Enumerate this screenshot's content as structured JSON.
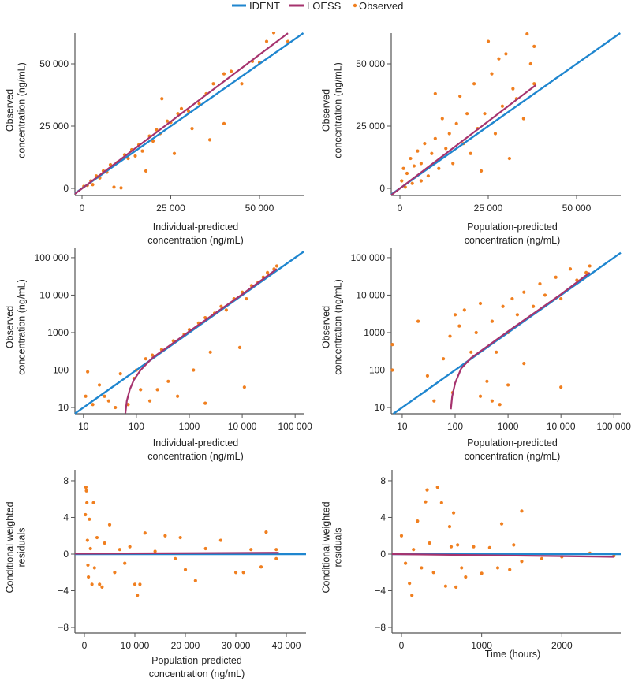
{
  "legend": {
    "items": [
      {
        "label": "IDENT",
        "kind": "line",
        "color": "#1f86cf"
      },
      {
        "label": "LOESS",
        "kind": "line",
        "color": "#a6336e"
      },
      {
        "label": "Observed",
        "kind": "point",
        "color": "#f07f1f"
      }
    ],
    "placement": "top-center"
  },
  "chart_data": [
    {
      "type": "scatter",
      "xlabel": [
        "Individual-predicted",
        "concentration (ng/mL)"
      ],
      "ylabel": [
        "Observed",
        "concentration (ng/mL)"
      ],
      "xscale": "linear",
      "yscale": "linear",
      "xlim": [
        -2000,
        62440
      ],
      "ylim": [
        -2850,
        62340
      ],
      "xticks": [
        0,
        25000,
        50000
      ],
      "xtick_labels": [
        "0",
        "25 000",
        "50 000"
      ],
      "yticks": [
        0,
        25000,
        50000
      ],
      "ytick_labels": [
        "0",
        "25 000",
        "50 000"
      ],
      "ident": "y=x",
      "loess": [
        [
          -2000,
          -2200
        ],
        [
          58000,
          62300
        ]
      ],
      "observed": [
        [
          500,
          800
        ],
        [
          1500,
          1200
        ],
        [
          2500,
          3000
        ],
        [
          3000,
          1500
        ],
        [
          4000,
          5000
        ],
        [
          5000,
          4200
        ],
        [
          6000,
          7000
        ],
        [
          7000,
          6500
        ],
        [
          8000,
          9500
        ],
        [
          9000,
          500
        ],
        [
          10000,
          10500
        ],
        [
          11000,
          200
        ],
        [
          12000,
          13500
        ],
        [
          13000,
          12000
        ],
        [
          14000,
          15500
        ],
        [
          15000,
          13000
        ],
        [
          16000,
          17500
        ],
        [
          17000,
          15000
        ],
        [
          18000,
          7000
        ],
        [
          19000,
          21000
        ],
        [
          20000,
          19000
        ],
        [
          21000,
          23500
        ],
        [
          22000,
          22000
        ],
        [
          22500,
          36000
        ],
        [
          24000,
          27000
        ],
        [
          25000,
          26500
        ],
        [
          26000,
          14000
        ],
        [
          27000,
          30000
        ],
        [
          28000,
          32000
        ],
        [
          30000,
          31000
        ],
        [
          31000,
          24000
        ],
        [
          33000,
          34000
        ],
        [
          35000,
          38000
        ],
        [
          36000,
          19500
        ],
        [
          37000,
          42000
        ],
        [
          40000,
          26000
        ],
        [
          40000,
          46000
        ],
        [
          42000,
          47000
        ],
        [
          45000,
          42000
        ],
        [
          48000,
          51000
        ],
        [
          50000,
          50500
        ],
        [
          52000,
          59000
        ],
        [
          54000,
          62500
        ],
        [
          58000,
          59000
        ]
      ]
    },
    {
      "type": "scatter",
      "xlabel": [
        "Population-predicted",
        "concentration (ng/mL)"
      ],
      "ylabel": [
        "Observed",
        "concentration (ng/mL)"
      ],
      "xscale": "linear",
      "yscale": "linear",
      "xlim": [
        -2460,
        62500
      ],
      "ylim": [
        -2850,
        62340
      ],
      "xticks": [
        0,
        25000,
        50000
      ],
      "xtick_labels": [
        "0",
        "25 000",
        "50 000"
      ],
      "yticks": [
        0,
        25000,
        50000
      ],
      "ytick_labels": [
        "0",
        "25 000",
        "50 000"
      ],
      "ident": "y=x",
      "loess": [
        [
          -2460,
          -2700
        ],
        [
          38500,
          41500
        ]
      ],
      "observed": [
        [
          500,
          3000
        ],
        [
          1000,
          8000
        ],
        [
          1500,
          500
        ],
        [
          2000,
          6000
        ],
        [
          3000,
          12000
        ],
        [
          3500,
          2000
        ],
        [
          4000,
          9000
        ],
        [
          5000,
          15000
        ],
        [
          6000,
          3000
        ],
        [
          6000,
          10000
        ],
        [
          7000,
          18000
        ],
        [
          8000,
          5000
        ],
        [
          9000,
          14000
        ],
        [
          10000,
          38000
        ],
        [
          10000,
          20000
        ],
        [
          11000,
          8000
        ],
        [
          12000,
          28000
        ],
        [
          13000,
          16000
        ],
        [
          14000,
          22000
        ],
        [
          15000,
          10000
        ],
        [
          16000,
          26000
        ],
        [
          17000,
          37000
        ],
        [
          18000,
          18000
        ],
        [
          19000,
          30000
        ],
        [
          20000,
          14000
        ],
        [
          21000,
          42000
        ],
        [
          22000,
          24000
        ],
        [
          23000,
          7000
        ],
        [
          24000,
          30000
        ],
        [
          25000,
          59000
        ],
        [
          26000,
          46000
        ],
        [
          27000,
          22000
        ],
        [
          28000,
          52000
        ],
        [
          29000,
          33000
        ],
        [
          30000,
          54000
        ],
        [
          31000,
          12000
        ],
        [
          32000,
          40000
        ],
        [
          33000,
          36000
        ],
        [
          35000,
          28000
        ],
        [
          36000,
          62000
        ],
        [
          37000,
          50000
        ],
        [
          38000,
          57000
        ],
        [
          38000,
          42000
        ]
      ]
    },
    {
      "type": "scatter",
      "xlabel": [
        "Individual-predicted",
        "concentration (ng/mL)"
      ],
      "ylabel": [
        "Observed",
        "concentration (ng/mL)"
      ],
      "xscale": "log",
      "yscale": "log",
      "xlim": [
        6.9,
        145000
      ],
      "ylim": [
        6.8,
        178000
      ],
      "xticks": [
        10,
        100,
        1000,
        10000,
        100000
      ],
      "xtick_labels": [
        "10",
        "100",
        "1000",
        "10 000",
        "100 000"
      ],
      "yticks": [
        10,
        100,
        1000,
        10000,
        100000
      ],
      "ytick_labels": [
        "10",
        "100",
        "1000",
        "10 000",
        "100 000"
      ],
      "ident": "y=x",
      "loess": [
        [
          62,
          7
        ],
        [
          66,
          15
        ],
        [
          75,
          30
        ],
        [
          90,
          55
        ],
        [
          120,
          100
        ],
        [
          200,
          210
        ],
        [
          500,
          530
        ],
        [
          1000,
          1080
        ],
        [
          3000,
          3200
        ],
        [
          10000,
          10500
        ],
        [
          45000,
          50000
        ]
      ],
      "observed": [
        [
          12,
          90
        ],
        [
          11,
          20
        ],
        [
          15,
          12
        ],
        [
          20,
          40
        ],
        [
          25,
          20
        ],
        [
          30,
          15
        ],
        [
          40,
          10
        ],
        [
          50,
          80
        ],
        [
          70,
          12
        ],
        [
          90,
          60
        ],
        [
          100,
          100
        ],
        [
          120,
          30
        ],
        [
          150,
          200
        ],
        [
          180,
          15
        ],
        [
          200,
          250
        ],
        [
          250,
          30
        ],
        [
          300,
          350
        ],
        [
          400,
          50
        ],
        [
          500,
          600
        ],
        [
          600,
          20
        ],
        [
          800,
          900
        ],
        [
          1000,
          1200
        ],
        [
          1200,
          100
        ],
        [
          1500,
          1800
        ],
        [
          2000,
          2500
        ],
        [
          2000,
          13
        ],
        [
          2500,
          300
        ],
        [
          3000,
          3300
        ],
        [
          4000,
          5000
        ],
        [
          5000,
          4000
        ],
        [
          7000,
          8000
        ],
        [
          9000,
          400
        ],
        [
          10000,
          12000
        ],
        [
          11000,
          35
        ],
        [
          12000,
          8000
        ],
        [
          15000,
          18000
        ],
        [
          20000,
          22000
        ],
        [
          25000,
          30000
        ],
        [
          30000,
          40000
        ],
        [
          40000,
          50000
        ],
        [
          45000,
          60000
        ]
      ]
    },
    {
      "type": "scatter",
      "xlabel": [
        "Population-predicted",
        "concentration (ng/mL)"
      ],
      "ylabel": [
        "Observed",
        "concentration (ng/mL)"
      ],
      "xscale": "log",
      "yscale": "log",
      "xlim": [
        6.2,
        135000
      ],
      "ylim": [
        6.8,
        178000
      ],
      "xticks": [
        10,
        100,
        1000,
        10000,
        100000
      ],
      "xtick_labels": [
        "10",
        "100",
        "1000",
        "10 000",
        "100 000"
      ],
      "yticks": [
        10,
        100,
        1000,
        10000,
        100000
      ],
      "ytick_labels": [
        "10",
        "100",
        "1000",
        "10 000",
        "100 000"
      ],
      "ident": "y=x",
      "loess": [
        [
          83,
          9
        ],
        [
          88,
          20
        ],
        [
          100,
          45
        ],
        [
          130,
          110
        ],
        [
          200,
          210
        ],
        [
          500,
          530
        ],
        [
          1000,
          1080
        ],
        [
          10000,
          10500
        ],
        [
          35000,
          40000
        ]
      ],
      "observed": [
        [
          6.5,
          480
        ],
        [
          6.5,
          100
        ],
        [
          20,
          2000
        ],
        [
          30,
          70
        ],
        [
          40,
          15
        ],
        [
          60,
          200
        ],
        [
          80,
          800
        ],
        [
          90,
          25
        ],
        [
          100,
          3000
        ],
        [
          120,
          1500
        ],
        [
          150,
          4000
        ],
        [
          200,
          300
        ],
        [
          250,
          1000
        ],
        [
          300,
          20
        ],
        [
          300,
          6000
        ],
        [
          400,
          50
        ],
        [
          500,
          15
        ],
        [
          500,
          2000
        ],
        [
          600,
          300
        ],
        [
          700,
          12
        ],
        [
          800,
          5000
        ],
        [
          1000,
          1000
        ],
        [
          1000,
          40
        ],
        [
          1200,
          8000
        ],
        [
          1500,
          3000
        ],
        [
          2000,
          150
        ],
        [
          2000,
          12000
        ],
        [
          3000,
          5000
        ],
        [
          4000,
          20000
        ],
        [
          5000,
          10000
        ],
        [
          8000,
          30000
        ],
        [
          10000,
          35
        ],
        [
          10000,
          8000
        ],
        [
          15000,
          50000
        ],
        [
          20000,
          25000
        ],
        [
          30000,
          40000
        ],
        [
          35000,
          60000
        ]
      ]
    },
    {
      "type": "scatter",
      "xlabel": [
        "Population-predicted",
        "concentration (ng/mL)"
      ],
      "ylabel": [
        "Conditional weighted",
        "residuals"
      ],
      "xscale": "linear",
      "yscale": "linear",
      "xlim": [
        -1875,
        43900
      ],
      "ylim": [
        -8.6,
        9.2
      ],
      "xticks": [
        0,
        10000,
        20000,
        30000,
        40000
      ],
      "xtick_labels": [
        "0",
        "10 000",
        "20 000",
        "30 000",
        "40 000"
      ],
      "yticks": [
        -8,
        -4,
        0,
        4,
        8
      ],
      "ytick_labels": [
        "−8",
        "−4",
        "0",
        "4",
        "8"
      ],
      "ident": "y=0",
      "loess": [
        [
          -1875,
          0.05
        ],
        [
          38500,
          0.15
        ]
      ],
      "observed": [
        [
          200,
          4.3
        ],
        [
          300,
          7.3
        ],
        [
          400,
          6.9
        ],
        [
          500,
          5.6
        ],
        [
          600,
          1.5
        ],
        [
          700,
          -1.2
        ],
        [
          800,
          -2.5
        ],
        [
          1000,
          3.8
        ],
        [
          1200,
          0.6
        ],
        [
          1500,
          -3.3
        ],
        [
          1800,
          5.6
        ],
        [
          2000,
          -1.5
        ],
        [
          2500,
          1.8
        ],
        [
          3000,
          -3.3
        ],
        [
          3500,
          -3.6
        ],
        [
          4000,
          1.2
        ],
        [
          5000,
          3.2
        ],
        [
          6000,
          -2
        ],
        [
          7000,
          0.5
        ],
        [
          8000,
          -1
        ],
        [
          9000,
          0.8
        ],
        [
          10000,
          -3.3
        ],
        [
          10500,
          -4.5
        ],
        [
          11000,
          -3.3
        ],
        [
          12000,
          2.3
        ],
        [
          14000,
          0.3
        ],
        [
          16000,
          2
        ],
        [
          18000,
          -0.5
        ],
        [
          19000,
          1.8
        ],
        [
          20000,
          -1.7
        ],
        [
          22000,
          -2.9
        ],
        [
          24000,
          0.6
        ],
        [
          27000,
          1.5
        ],
        [
          30000,
          -2
        ],
        [
          31500,
          -2
        ],
        [
          33000,
          0.5
        ],
        [
          35000,
          -1.4
        ],
        [
          36000,
          2.4
        ],
        [
          38000,
          0.5
        ],
        [
          38000,
          -0.5
        ]
      ]
    },
    {
      "type": "scatter",
      "xlabel": [
        "Time (hours)"
      ],
      "ylabel": [
        "Conditional weighted",
        "residuals"
      ],
      "xscale": "linear",
      "yscale": "linear",
      "xlim": [
        -118,
        2735
      ],
      "ylim": [
        -8.6,
        9.2
      ],
      "xticks": [
        0,
        1000,
        2000
      ],
      "xtick_labels": [
        "0",
        "1000",
        "2000"
      ],
      "yticks": [
        -8,
        -4,
        0,
        4,
        8
      ],
      "ytick_labels": [
        "−8",
        "−4",
        "0",
        "4",
        "8"
      ],
      "ident": "y=0",
      "loess": [
        [
          -118,
          0
        ],
        [
          2650,
          -0.3
        ]
      ],
      "observed": [
        [
          0,
          2
        ],
        [
          50,
          -1
        ],
        [
          100,
          -3.2
        ],
        [
          130,
          -4.5
        ],
        [
          150,
          0.5
        ],
        [
          200,
          3.6
        ],
        [
          250,
          -1.5
        ],
        [
          300,
          5.7
        ],
        [
          320,
          7
        ],
        [
          350,
          1.2
        ],
        [
          400,
          -2
        ],
        [
          450,
          7.3
        ],
        [
          500,
          5.6
        ],
        [
          550,
          -3.5
        ],
        [
          600,
          3
        ],
        [
          620,
          0.8
        ],
        [
          650,
          4.5
        ],
        [
          680,
          -3.6
        ],
        [
          700,
          1
        ],
        [
          750,
          -1.5
        ],
        [
          800,
          -2.5
        ],
        [
          900,
          0.8
        ],
        [
          1000,
          -2.1
        ],
        [
          1100,
          0.7
        ],
        [
          1200,
          -1.5
        ],
        [
          1250,
          3.3
        ],
        [
          1350,
          -1.7
        ],
        [
          1400,
          1
        ],
        [
          1500,
          4.7
        ],
        [
          1500,
          -0.8
        ],
        [
          1750,
          -0.5
        ],
        [
          2000,
          -0.3
        ],
        [
          2350,
          0.1
        ],
        [
          2650,
          -0.2
        ]
      ]
    }
  ]
}
